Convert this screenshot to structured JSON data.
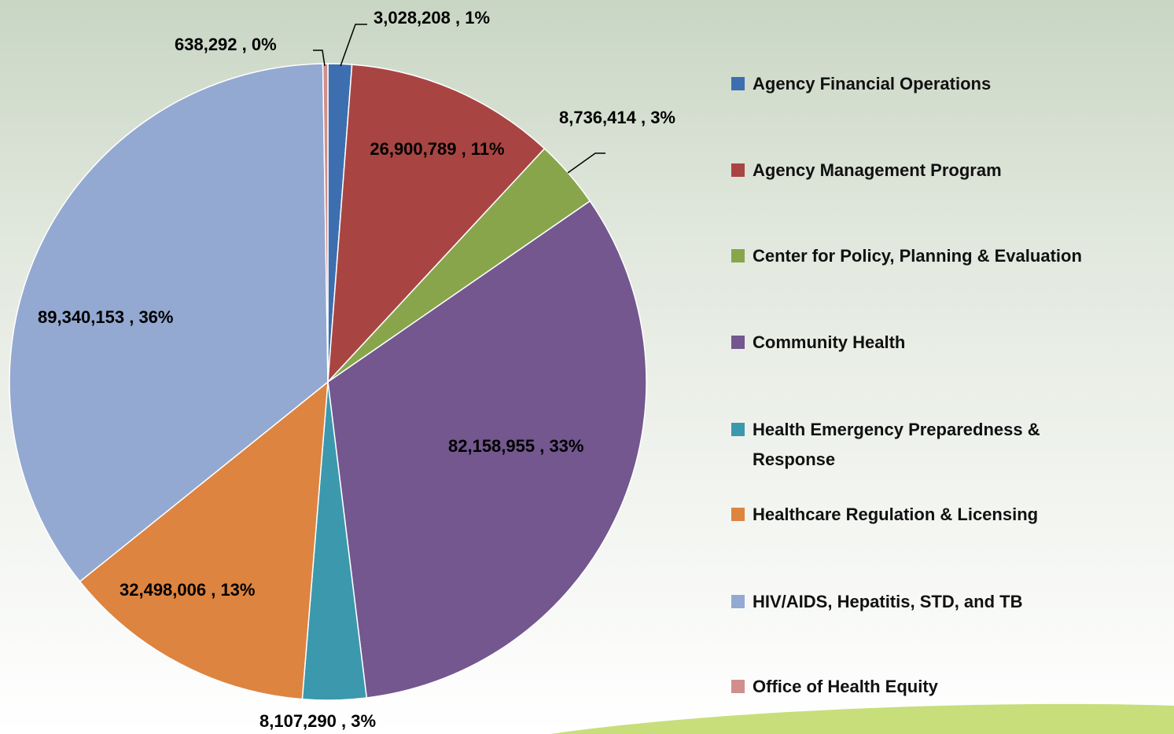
{
  "chart_data": {
    "type": "pie",
    "categories": [
      "Agency Financial Operations",
      "Agency Management Program",
      "Center for Policy, Planning & Evaluation",
      "Community Health",
      "Health Emergency Preparedness & Response",
      "Healthcare Regulation & Licensing",
      "HIV/AIDS, Hepatitis, STD, and TB",
      "Office of Health Equity"
    ],
    "values": [
      3028208,
      26900789,
      8736414,
      82158955,
      8107290,
      32498006,
      89340153,
      638292
    ],
    "value_labels": [
      "3,028,208 , 1%",
      "26,900,789 , 11%",
      "8,736,414 , 3%",
      "82,158,955 , 33%",
      "8,107,290 , 3%",
      "32,498,006 , 13%",
      "89,340,153 , 36%",
      "638,292 , 0%"
    ],
    "colors": [
      "#3d6fb0",
      "#a84543",
      "#88a54c",
      "#73578e",
      "#3c98ad",
      "#dd8440",
      "#93a9d1",
      "#d08f8c"
    ],
    "legend": "right"
  }
}
